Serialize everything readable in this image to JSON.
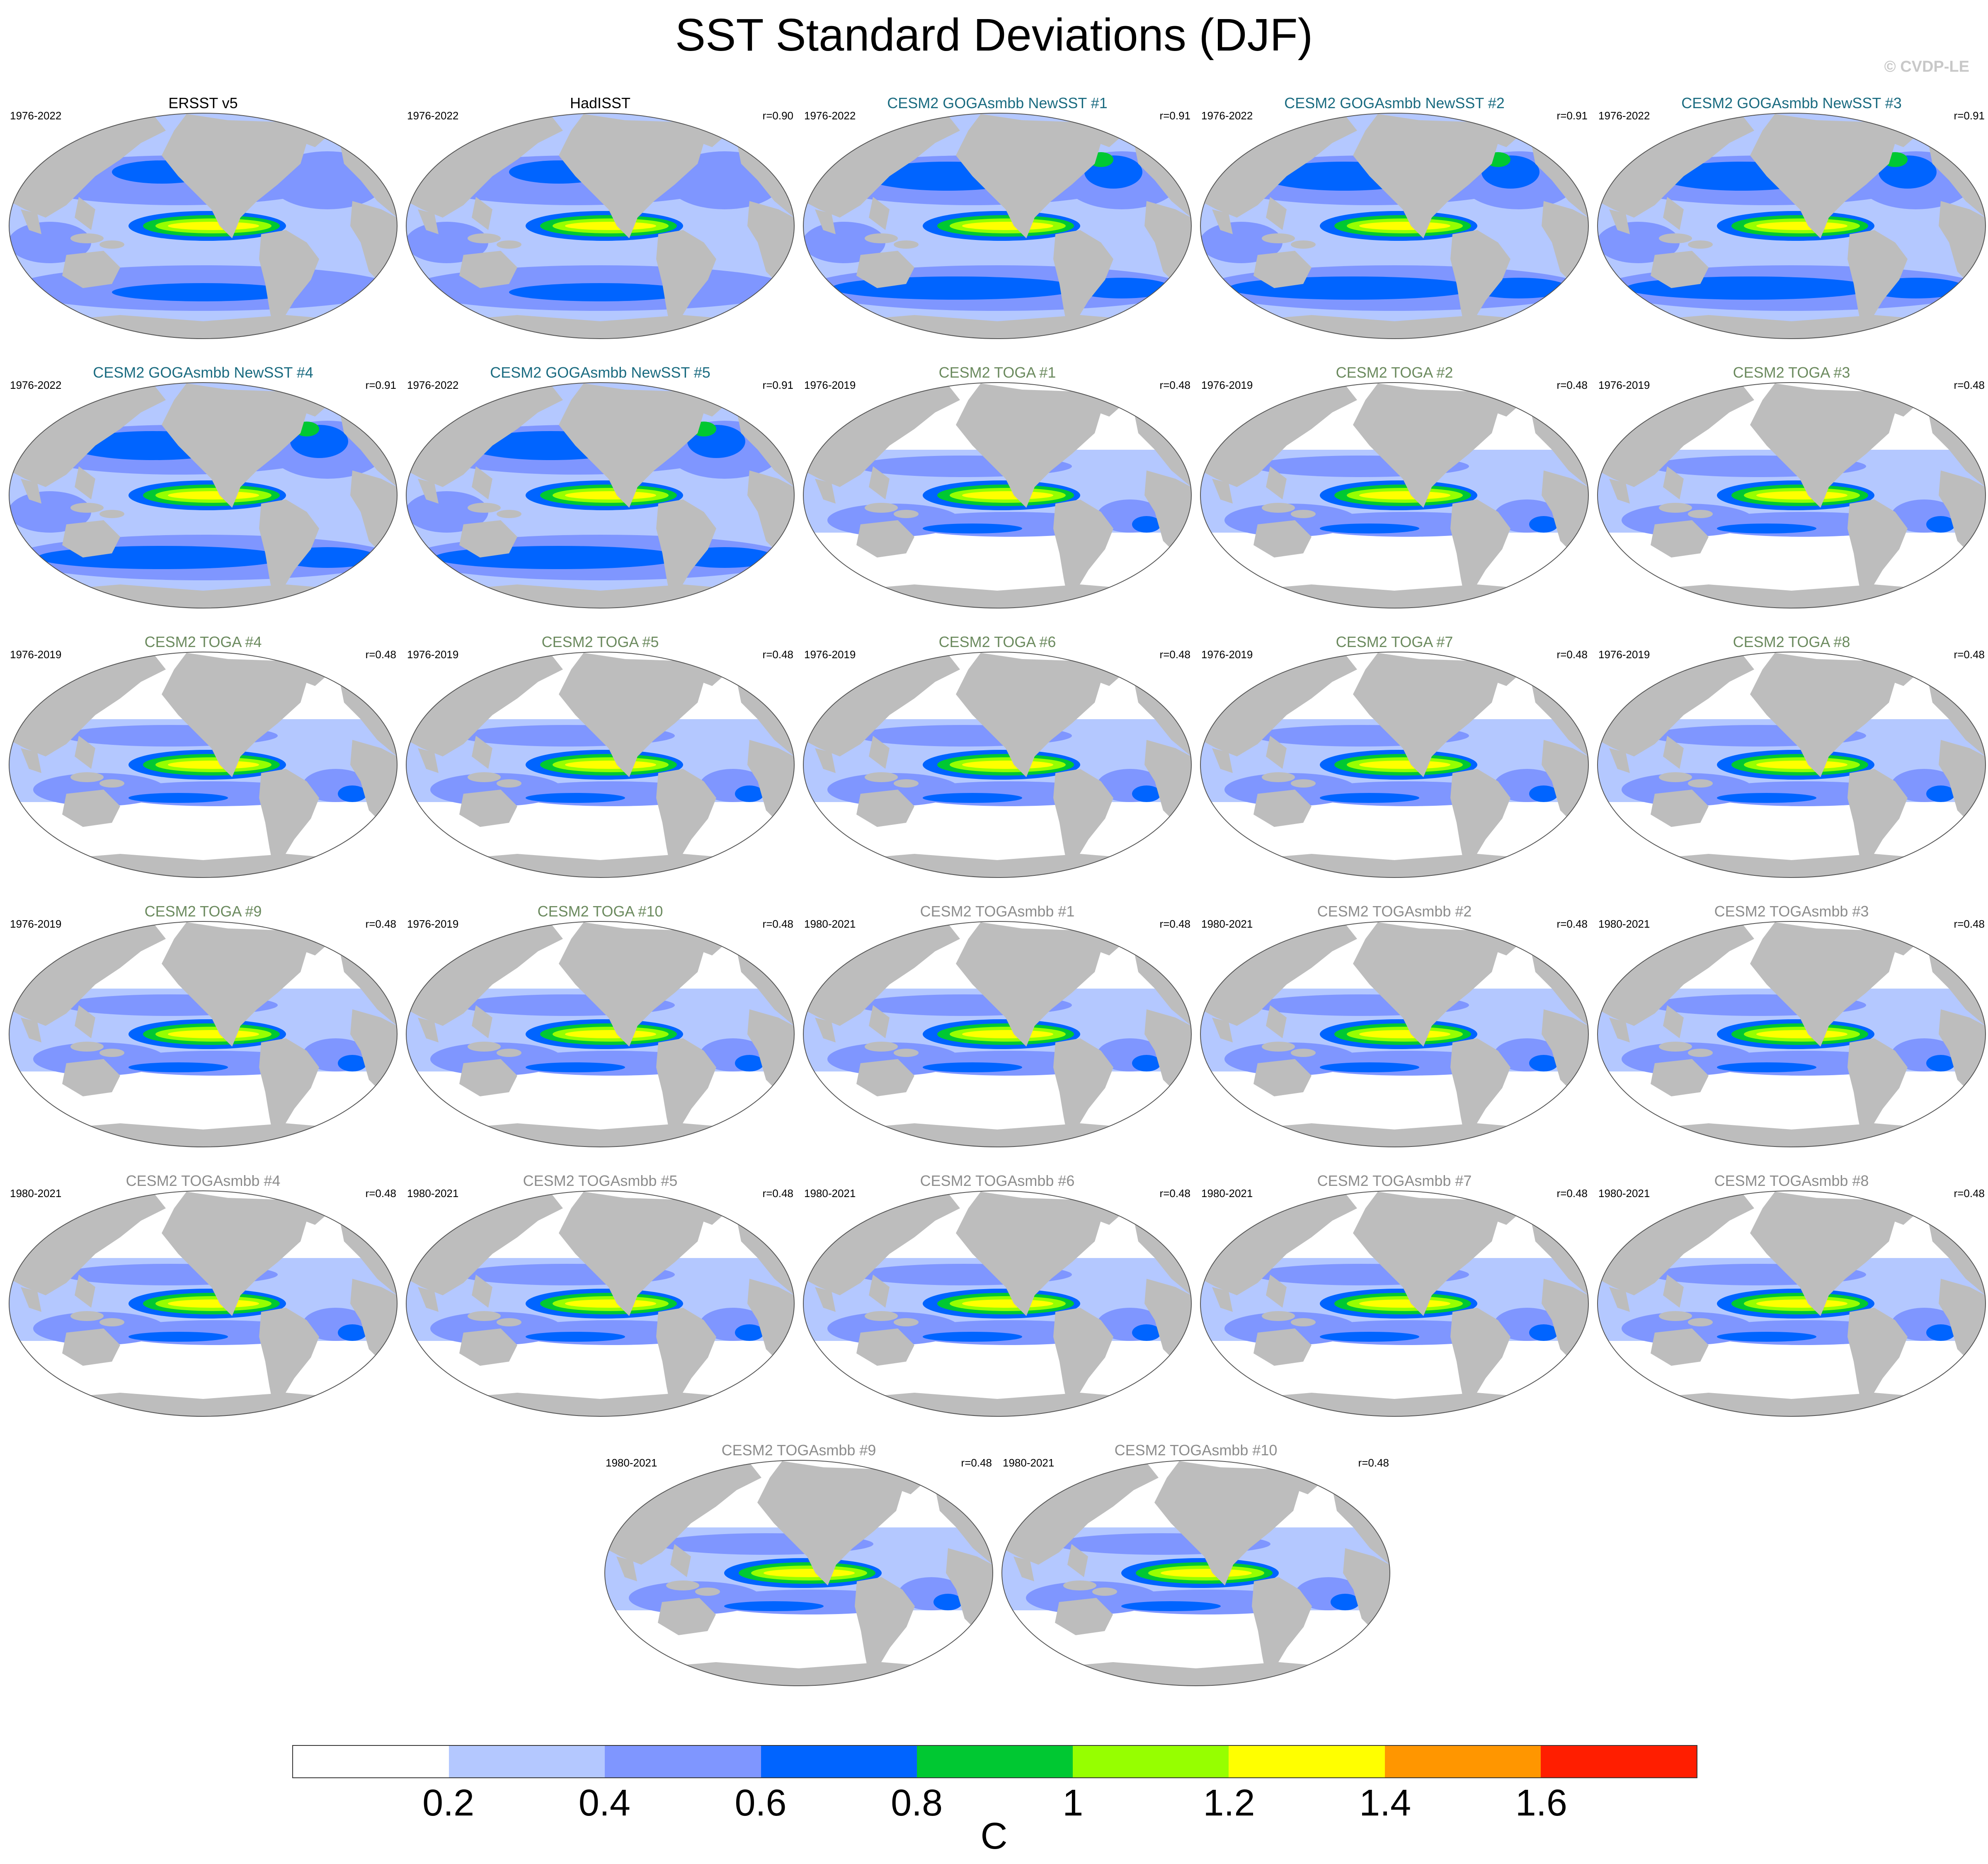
{
  "title": "SST Standard Deviations (DJF)",
  "watermark": "© CVDP-LE",
  "colors": {
    "land": "#bdbdbd",
    "levels": [
      "#ffffff",
      "#b4c8ff",
      "#7f96ff",
      "#0064ff",
      "#00c832",
      "#96ff00",
      "#ffff00",
      "#ff9600",
      "#ff1e00"
    ]
  },
  "colorbar": {
    "ticks": [
      "0.2",
      "0.4",
      "0.6",
      "0.8",
      "1",
      "1.2",
      "1.4",
      "1.6"
    ],
    "unit": "C"
  },
  "chart_data": {
    "type": "heatmap",
    "variable": "SST standard deviation",
    "season": "DJF",
    "units": "C",
    "contour_levels": [
      0.2,
      0.4,
      0.6,
      0.8,
      1.0,
      1.2,
      1.4,
      1.6
    ],
    "panels": [
      {
        "name": "ERSST v5",
        "period": "1976-2022",
        "r": "",
        "group": "obs",
        "title_color": "#000000"
      },
      {
        "name": "HadISST",
        "period": "1976-2022",
        "r": "r=0.90",
        "group": "obs",
        "title_color": "#000000"
      },
      {
        "name": "CESM2 GOGAsmbb NewSST #1",
        "period": "1976-2022",
        "r": "r=0.91",
        "group": "goga",
        "title_color": "#1a6b80"
      },
      {
        "name": "CESM2 GOGAsmbb NewSST #2",
        "period": "1976-2022",
        "r": "r=0.91",
        "group": "goga",
        "title_color": "#1a6b80"
      },
      {
        "name": "CESM2 GOGAsmbb NewSST #3",
        "period": "1976-2022",
        "r": "r=0.91",
        "group": "goga",
        "title_color": "#1a6b80"
      },
      {
        "name": "CESM2 GOGAsmbb NewSST #4",
        "period": "1976-2022",
        "r": "r=0.91",
        "group": "goga",
        "title_color": "#1a6b80"
      },
      {
        "name": "CESM2 GOGAsmbb NewSST #5",
        "period": "1976-2022",
        "r": "r=0.91",
        "group": "goga",
        "title_color": "#1a6b80"
      },
      {
        "name": "CESM2 TOGA #1",
        "period": "1976-2019",
        "r": "r=0.48",
        "group": "toga",
        "title_color": "#6b8a5e"
      },
      {
        "name": "CESM2 TOGA #2",
        "period": "1976-2019",
        "r": "r=0.48",
        "group": "toga",
        "title_color": "#6b8a5e"
      },
      {
        "name": "CESM2 TOGA #3",
        "period": "1976-2019",
        "r": "r=0.48",
        "group": "toga",
        "title_color": "#6b8a5e"
      },
      {
        "name": "CESM2 TOGA #4",
        "period": "1976-2019",
        "r": "r=0.48",
        "group": "toga",
        "title_color": "#6b8a5e"
      },
      {
        "name": "CESM2 TOGA #5",
        "period": "1976-2019",
        "r": "r=0.48",
        "group": "toga",
        "title_color": "#6b8a5e"
      },
      {
        "name": "CESM2 TOGA #6",
        "period": "1976-2019",
        "r": "r=0.48",
        "group": "toga",
        "title_color": "#6b8a5e"
      },
      {
        "name": "CESM2 TOGA #7",
        "period": "1976-2019",
        "r": "r=0.48",
        "group": "toga",
        "title_color": "#6b8a5e"
      },
      {
        "name": "CESM2 TOGA #8",
        "period": "1976-2019",
        "r": "r=0.48",
        "group": "toga",
        "title_color": "#6b8a5e"
      },
      {
        "name": "CESM2 TOGA #9",
        "period": "1976-2019",
        "r": "r=0.48",
        "group": "toga",
        "title_color": "#6b8a5e"
      },
      {
        "name": "CESM2 TOGA #10",
        "period": "1976-2019",
        "r": "r=0.48",
        "group": "toga",
        "title_color": "#6b8a5e"
      },
      {
        "name": "CESM2 TOGAsmbb #1",
        "period": "1980-2021",
        "r": "r=0.48",
        "group": "togasmbb",
        "title_color": "#8c8c8c"
      },
      {
        "name": "CESM2 TOGAsmbb #2",
        "period": "1980-2021",
        "r": "r=0.48",
        "group": "togasmbb",
        "title_color": "#8c8c8c"
      },
      {
        "name": "CESM2 TOGAsmbb #3",
        "period": "1980-2021",
        "r": "r=0.48",
        "group": "togasmbb",
        "title_color": "#8c8c8c"
      },
      {
        "name": "CESM2 TOGAsmbb #4",
        "period": "1980-2021",
        "r": "r=0.48",
        "group": "togasmbb",
        "title_color": "#8c8c8c"
      },
      {
        "name": "CESM2 TOGAsmbb #5",
        "period": "1980-2021",
        "r": "r=0.48",
        "group": "togasmbb",
        "title_color": "#8c8c8c"
      },
      {
        "name": "CESM2 TOGAsmbb #6",
        "period": "1980-2021",
        "r": "r=0.48",
        "group": "togasmbb",
        "title_color": "#8c8c8c"
      },
      {
        "name": "CESM2 TOGAsmbb #7",
        "period": "1980-2021",
        "r": "r=0.48",
        "group": "togasmbb",
        "title_color": "#8c8c8c"
      },
      {
        "name": "CESM2 TOGAsmbb #8",
        "period": "1980-2021",
        "r": "r=0.48",
        "group": "togasmbb",
        "title_color": "#8c8c8c"
      },
      {
        "name": "CESM2 TOGAsmbb #9",
        "period": "1980-2021",
        "r": "r=0.48",
        "group": "togasmbb",
        "title_color": "#8c8c8c"
      },
      {
        "name": "CESM2 TOGAsmbb #10",
        "period": "1980-2021",
        "r": "r=0.48",
        "group": "togasmbb",
        "title_color": "#8c8c8c"
      }
    ]
  }
}
